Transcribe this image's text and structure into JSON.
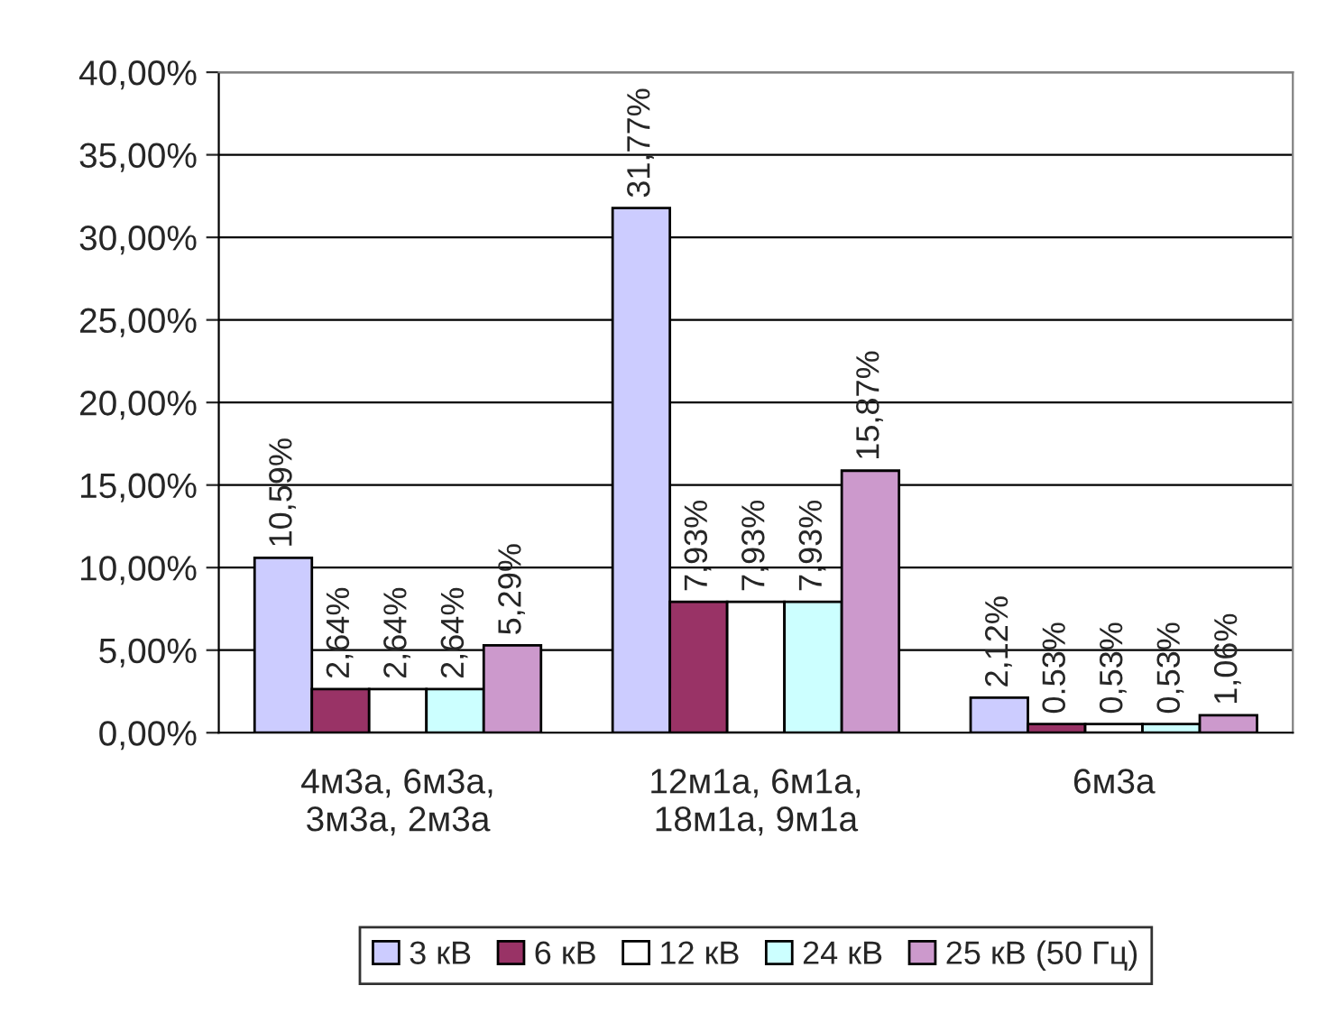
{
  "chart_data": {
    "type": "bar",
    "categories": [
      "4м3а, 6м3а,\n3м3а, 2м3а",
      "12м1а, 6м1а,\n18м1а, 9м1а",
      "6м3а"
    ],
    "series": [
      {
        "name": "3 кВ",
        "color": "#ccccff",
        "values": [
          10.59,
          31.77,
          2.12
        ],
        "value_labels": [
          "10,59%",
          "31,77%",
          "2,12%"
        ]
      },
      {
        "name": "6 кВ",
        "color": "#993366",
        "values": [
          2.64,
          7.93,
          0.53
        ],
        "value_labels": [
          "2,64%",
          "7,93%",
          "0.53%"
        ]
      },
      {
        "name": "12 кВ",
        "color": "#ffffff",
        "values": [
          2.64,
          7.93,
          0.53
        ],
        "value_labels": [
          "2,64%",
          "7,93%",
          "0,53%"
        ]
      },
      {
        "name": "24 кВ",
        "color": "#ccffff",
        "values": [
          2.64,
          7.93,
          0.53
        ],
        "value_labels": [
          "2,64%",
          "7,93%",
          "0,53%"
        ]
      },
      {
        "name": "25 кВ (50 Гц)",
        "color": "#cc99cc",
        "values": [
          5.29,
          15.87,
          1.06
        ],
        "value_labels": [
          "5,29%",
          "15,87%",
          "1,06%"
        ]
      }
    ],
    "ylim": [
      0,
      40
    ],
    "yticks": [
      {
        "value": 0,
        "label": "0,00%"
      },
      {
        "value": 5,
        "label": "5,00%"
      },
      {
        "value": 10,
        "label": "10,00%"
      },
      {
        "value": 15,
        "label": "15,00%"
      },
      {
        "value": 20,
        "label": "20,00%"
      },
      {
        "value": 25,
        "label": "25,00%"
      },
      {
        "value": 30,
        "label": "30,00%"
      },
      {
        "value": 35,
        "label": "35,00%"
      },
      {
        "value": 40,
        "label": "40,00%"
      }
    ],
    "grid": "y",
    "legend": "bottom"
  }
}
